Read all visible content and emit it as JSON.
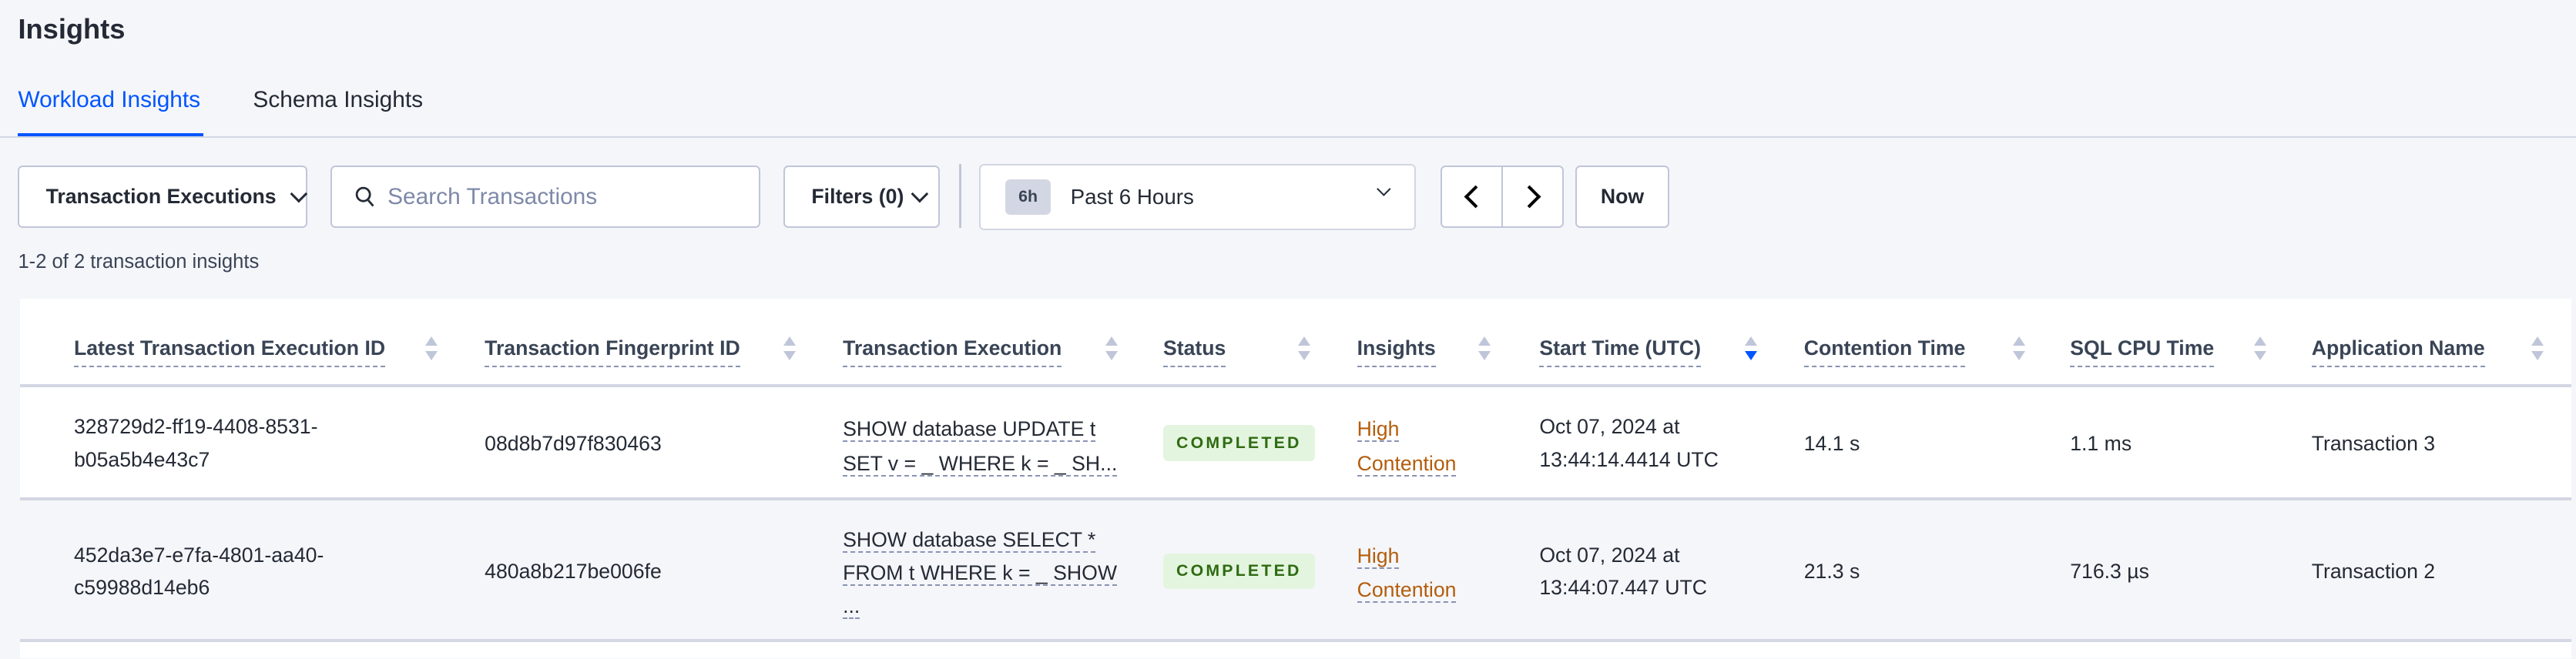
{
  "page_title": "Insights",
  "tabs": [
    {
      "label": "Workload Insights",
      "active": true
    },
    {
      "label": "Schema Insights",
      "active": false
    }
  ],
  "toolbar": {
    "view_select": "Transaction Executions",
    "search_placeholder": "Search Transactions",
    "filters_label": "Filters (0)",
    "time_badge": "6h",
    "time_range": "Past 6 Hours",
    "now_label": "Now"
  },
  "result_count": "1-2 of 2 transaction insights",
  "table": {
    "columns": [
      "Latest Transaction Execution ID",
      "Transaction Fingerprint ID",
      "Transaction Execution",
      "Status",
      "Insights",
      "Start Time (UTC)",
      "Contention Time",
      "SQL CPU Time",
      "Application Name"
    ],
    "sorted_column": "Start Time (UTC)",
    "sort_direction": "descending",
    "rows": [
      {
        "exec_id_1": "328729d2-ff19-4408-8531-",
        "exec_id_2": "b05a5b4e43c7",
        "fingerprint": "08d8b7d97f830463",
        "query_1": "SHOW database UPDATE t",
        "query_2": "SET v = _ WHERE k = _ SH...",
        "query_3": "",
        "status": "COMPLETED",
        "insight_1": "High",
        "insight_2": "Contention",
        "start_1": "Oct 07, 2024 at",
        "start_2": "13:44:14.4414 UTC",
        "contention": "14.1 s",
        "cpu": "1.1 ms",
        "app": "Transaction 3"
      },
      {
        "exec_id_1": "452da3e7-e7fa-4801-aa40-",
        "exec_id_2": "c59988d14eb6",
        "fingerprint": "480a8b217be006fe",
        "query_1": "SHOW database SELECT *",
        "query_2": "FROM t WHERE k = _ SHOW",
        "query_3": "...",
        "status": "COMPLETED",
        "insight_1": "High",
        "insight_2": "Contention",
        "start_1": "Oct 07, 2024 at",
        "start_2": "13:44:07.447 UTC",
        "contention": "21.3 s",
        "cpu": "716.3 µs",
        "app": "Transaction 2"
      }
    ]
  },
  "colors": {
    "accent": "#0055ff",
    "status_bg": "#e4f5df",
    "status_text": "#2e6b12",
    "insight_text": "#b35d0c"
  }
}
